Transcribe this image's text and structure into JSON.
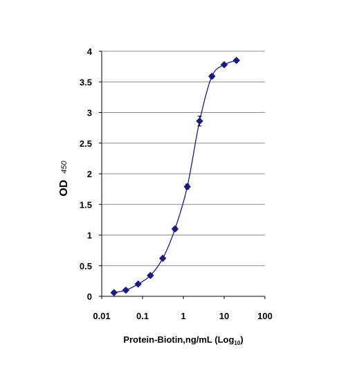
{
  "chart_data": {
    "type": "scatter",
    "title": "",
    "xlabel": "Protein-Biotin,ng/mL (Log",
    "xlabel_sub": "10",
    "xlabel_end": ")",
    "ylabel": "OD",
    "ylabel_sub": "450",
    "x_scale": "log",
    "xlim": [
      0.01,
      100
    ],
    "ylim": [
      0,
      4
    ],
    "x_ticks": [
      "0.01",
      "0.1",
      "1",
      "10",
      "100"
    ],
    "y_ticks": [
      "0",
      "0.5",
      "1",
      "1.5",
      "2",
      "2.5",
      "3",
      "3.5",
      "4"
    ],
    "grid": "horizontal",
    "legend": "none",
    "series_color": "#1a1a7e",
    "series": [
      {
        "x": [
          0.02,
          0.039,
          0.078,
          0.156,
          0.313,
          0.625,
          1.25,
          2.5,
          5,
          10,
          20
        ],
        "y": [
          0.06,
          0.1,
          0.2,
          0.34,
          0.62,
          1.1,
          1.79,
          2.86,
          3.59,
          3.78,
          3.85
        ],
        "err": [
          0.02,
          0.02,
          0.02,
          0.02,
          0.02,
          0.03,
          0.04,
          0.08,
          0.03,
          0.02,
          0.02
        ]
      }
    ]
  }
}
